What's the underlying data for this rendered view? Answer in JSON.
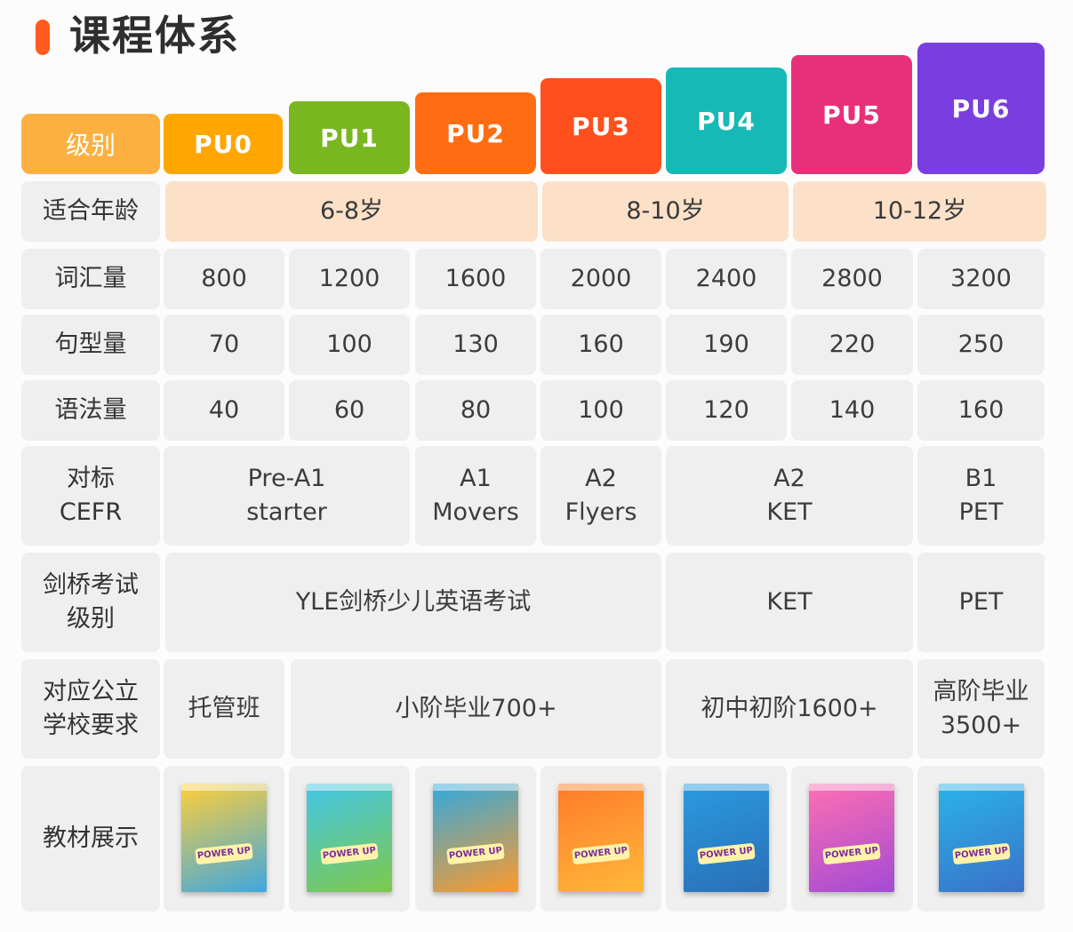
{
  "title": "课程体系",
  "row_labels": {
    "level": "级别",
    "age": "适合年龄",
    "vocab": "词汇量",
    "sentence": "句型量",
    "grammar": "语法量",
    "cefr": "对标\nCEFR",
    "exam": "剑桥考试\n级别",
    "school": "对应公立\n学校要求",
    "books": "教材展示"
  },
  "levels": [
    {
      "name": "PU0",
      "color": "#ffa600"
    },
    {
      "name": "PU1",
      "color": "#78b720"
    },
    {
      "name": "PU2",
      "color": "#ff6d12"
    },
    {
      "name": "PU3",
      "color": "#ff4f1d"
    },
    {
      "name": "PU4",
      "color": "#16b9b5"
    },
    {
      "name": "PU5",
      "color": "#e8307a"
    },
    {
      "name": "PU6",
      "color": "#7a3ee0"
    }
  ],
  "ages": [
    "6-8岁",
    "8-10岁",
    "10-12岁"
  ],
  "vocab": [
    "800",
    "1200",
    "1600",
    "2000",
    "2400",
    "2800",
    "3200"
  ],
  "sentence": [
    "70",
    "100",
    "130",
    "160",
    "190",
    "220",
    "250"
  ],
  "grammar": [
    "40",
    "60",
    "80",
    "100",
    "120",
    "140",
    "160"
  ],
  "cefr": [
    "Pre-A1\nstarter",
    "A1\nMovers",
    "A2\nFlyers",
    "A2\nKET",
    "B1\nPET"
  ],
  "exam": [
    "YLE剑桥少儿英语考试",
    "KET",
    "PET"
  ],
  "school": [
    "托管班",
    "小阶毕业700+",
    "初中初阶1600+",
    "高阶毕业\n3500+"
  ],
  "books": [
    {
      "logo": "POWER UP",
      "colors": [
        "#ffcf3a",
        "#3fa7e0"
      ]
    },
    {
      "logo": "POWER UP",
      "colors": [
        "#42c6e8",
        "#7ec94a"
      ]
    },
    {
      "logo": "POWER UP",
      "colors": [
        "#2fa9e0",
        "#ff9a2a"
      ]
    },
    {
      "logo": "POWER UP",
      "colors": [
        "#ff7a2a",
        "#ffb93a"
      ]
    },
    {
      "logo": "POWER UP",
      "colors": [
        "#2a9be0",
        "#2a6fb5"
      ]
    },
    {
      "logo": "POWER UP",
      "colors": [
        "#ff6fb0",
        "#a34ad6"
      ]
    },
    {
      "logo": "POWER UP",
      "colors": [
        "#2ab4e8",
        "#3a72c8"
      ]
    }
  ]
}
